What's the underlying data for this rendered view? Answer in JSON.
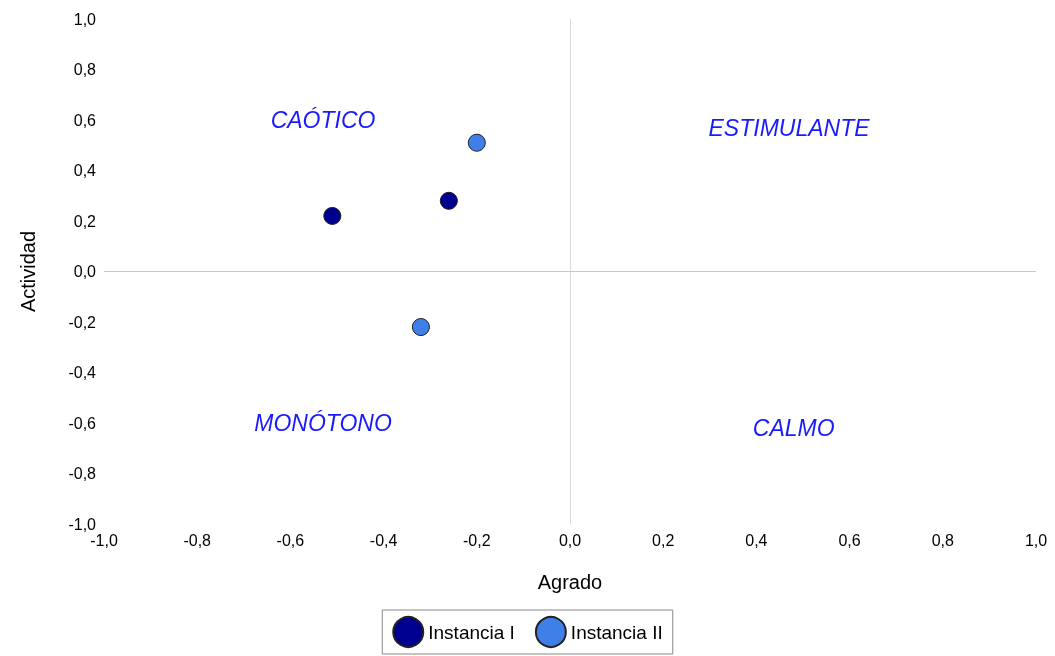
{
  "chart_data": {
    "type": "scatter",
    "xlabel": "Agrado",
    "ylabel": "Actividad",
    "series": [
      {
        "name": "Instancia I",
        "color": "#000090",
        "x": [
          -0.51,
          -0.26
        ],
        "values": [
          0.22,
          0.28
        ]
      },
      {
        "name": "Instancia II",
        "color": "#3f7fe8",
        "x": [
          -0.2,
          -0.32
        ],
        "values": [
          0.51,
          -0.22
        ]
      }
    ],
    "xlim": [
      -1,
      1
    ],
    "xticks": [
      {
        "value": -1,
        "label": "-1,0"
      },
      {
        "value": -0.8,
        "label": "-0,8"
      },
      {
        "value": -0.6,
        "label": "-0,6"
      },
      {
        "value": -0.4,
        "label": "-0,4"
      },
      {
        "value": -0.2,
        "label": "-0,2"
      },
      {
        "value": 0,
        "label": "0,0"
      },
      {
        "value": 0.2,
        "label": "0,2"
      },
      {
        "value": 0.4,
        "label": "0,4"
      },
      {
        "value": 0.6,
        "label": "0,6"
      },
      {
        "value": 0.8,
        "label": "0,8"
      },
      {
        "value": 1,
        "label": "1,0"
      }
    ],
    "ylim": [
      -1,
      1
    ],
    "yticks": [
      {
        "value": -1,
        "label": "-1,0"
      },
      {
        "value": -0.8,
        "label": "-0,8"
      },
      {
        "value": -0.6,
        "label": "-0,6"
      },
      {
        "value": -0.4,
        "label": "-0,4"
      },
      {
        "value": -0.2,
        "label": "-0,2"
      },
      {
        "value": 0,
        "label": "0,0"
      },
      {
        "value": 0.2,
        "label": "0,2"
      },
      {
        "value": 0.4,
        "label": "0,4"
      },
      {
        "value": 0.6,
        "label": "0,6"
      },
      {
        "value": 0.8,
        "label": "0,8"
      },
      {
        "value": 1,
        "label": "1,0"
      }
    ],
    "ref_lines": [
      {
        "axis": "x",
        "value": 0,
        "color": "#dcdcdc"
      },
      {
        "axis": "y",
        "value": 0,
        "color": "#c8c8c8"
      }
    ],
    "annotations": [
      "CAÓTICO",
      "ESTIMULANTE",
      "MONÓTONO",
      "CALMO"
    ],
    "grid": false,
    "legend": "bottom",
    "marker": "circle"
  }
}
